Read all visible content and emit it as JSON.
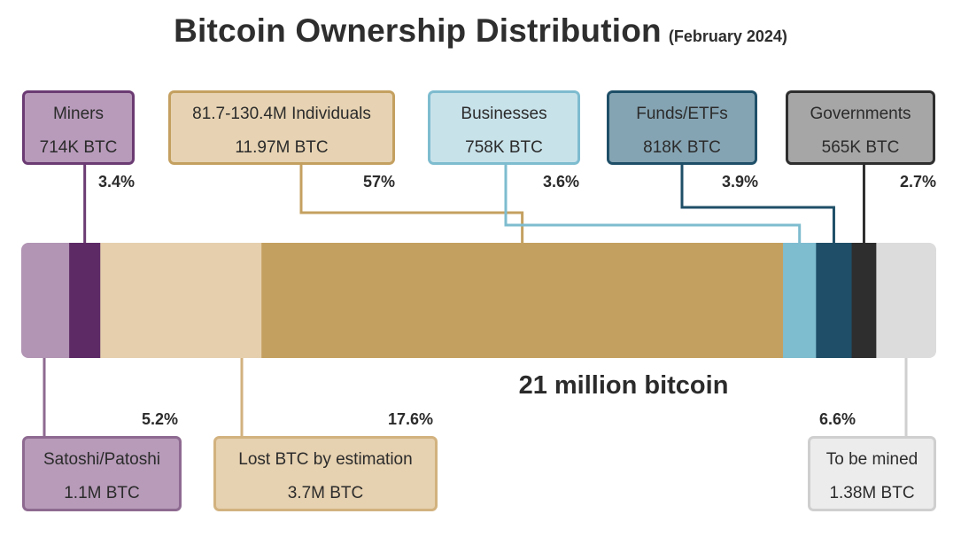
{
  "title": "Bitcoin Ownership Distribution",
  "subtitle": "(February 2024)",
  "chart_data": {
    "type": "bar",
    "title": "Bitcoin Ownership Distribution",
    "subtitle": "(February 2024)",
    "total_label": "21 million bitcoin",
    "total": 21000000,
    "unit": "BTC",
    "series": [
      {
        "name": "Satoshi/Patoshi",
        "amount": "1.1M BTC",
        "value": 1100000,
        "percent": 5.2,
        "percent_label": "5.2%",
        "color": "#b294b4",
        "border": "#8e6a91",
        "box_fill": "#b79bb9",
        "label_position": "bottom"
      },
      {
        "name": "Miners",
        "amount": "714K BTC",
        "value": 714000,
        "percent": 3.4,
        "percent_label": "3.4%",
        "color": "#5e2a66",
        "border": "#6b3b73",
        "box_fill": "#b89bbb",
        "label_position": "top"
      },
      {
        "name": "Lost BTC by estimation",
        "amount": "3.7M BTC",
        "value": 3700000,
        "percent": 17.6,
        "percent_label": "17.6%",
        "color": "#e5cfad",
        "border": "#d2b27f",
        "box_fill": "#e6d1b0",
        "label_position": "bottom"
      },
      {
        "name": "81.7-130.4M Individuals",
        "amount": "11.97M BTC",
        "value": 11970000,
        "percent": 57,
        "percent_label": "57%",
        "color": "#c4a060",
        "border": "#c4a060",
        "box_fill": "#e7d3b3",
        "label_position": "top"
      },
      {
        "name": "Businesses",
        "amount": "758K BTC",
        "value": 758000,
        "percent": 3.6,
        "percent_label": "3.6%",
        "color": "#7ebccf",
        "border": "#7ebccf",
        "box_fill": "#c8e2ea",
        "label_position": "top"
      },
      {
        "name": "Funds/ETFs",
        "amount": "818K BTC",
        "value": 818000,
        "percent": 3.9,
        "percent_label": "3.9%",
        "color": "#1f4f68",
        "border": "#1f4f68",
        "box_fill": "#85a4b3",
        "label_position": "top"
      },
      {
        "name": "Governments",
        "amount": "565K BTC",
        "value": 565000,
        "percent": 2.7,
        "percent_label": "2.7%",
        "color": "#2e2e2e",
        "border": "#2e2e2e",
        "box_fill": "#a6a6a6",
        "label_position": "top"
      },
      {
        "name": "To be mined",
        "amount": "1.38M BTC",
        "value": 1380000,
        "percent": 6.6,
        "percent_label": "6.6%",
        "color": "#dcdcdc",
        "border": "#cfcfcf",
        "box_fill": "#ececec",
        "label_position": "bottom"
      }
    ],
    "grid": false,
    "legend": "callout boxes"
  }
}
